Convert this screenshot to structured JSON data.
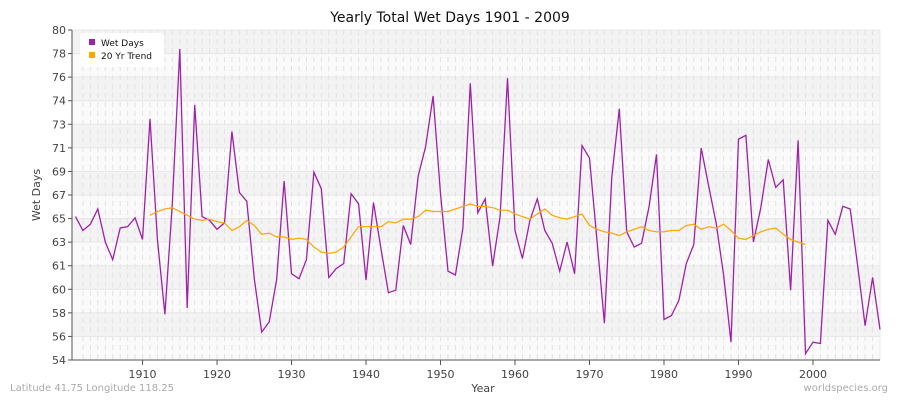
{
  "chart_data": {
    "type": "line",
    "title": "Yearly Total Wet Days 1901 - 2009",
    "xlabel": "Year",
    "ylabel": "Wet Days",
    "xlim": [
      1901,
      2009
    ],
    "ylim": [
      54,
      80
    ],
    "x_ticks": [
      1910,
      1920,
      1930,
      1940,
      1950,
      1960,
      1970,
      1980,
      1990,
      2000
    ],
    "y_tick_labels": [
      "54",
      "56",
      "58",
      "60",
      "61",
      "63",
      "65",
      "67",
      "69",
      "71",
      "73",
      "74",
      "76",
      "78",
      "80"
    ],
    "grid": true,
    "legend_placement": "top-left",
    "series": [
      {
        "name": "Wet Days",
        "color": "#a020a8",
        "start_year": 1901,
        "values": [
          65.3,
          64.2,
          64.7,
          65.9,
          63.3,
          61.9,
          64.4,
          64.5,
          65.2,
          63.5,
          73.0,
          63.5,
          57.6,
          66.3,
          78.5,
          58.1,
          74.1,
          65.3,
          65.0,
          64.3,
          64.8,
          72.0,
          67.2,
          66.5,
          60.4,
          56.2,
          57.0,
          60.3,
          68.1,
          60.8,
          60.4,
          61.9,
          68.8,
          67.5,
          60.5,
          61.2,
          61.6,
          67.1,
          66.3,
          60.3,
          66.4,
          62.8,
          59.3,
          59.5,
          64.6,
          63.1,
          68.5,
          70.8,
          74.8,
          67.1,
          61.0,
          60.7,
          64.4,
          75.8,
          65.6,
          66.7,
          61.4,
          65.3,
          76.2,
          64.2,
          62.0,
          65.0,
          66.7,
          64.2,
          63.2,
          61.0,
          63.3,
          60.8,
          70.9,
          69.9,
          63.5,
          56.9,
          68.4,
          73.8,
          64.1,
          62.9,
          63.2,
          66.1,
          70.2,
          57.2,
          57.5,
          58.7,
          61.6,
          63.1,
          70.7,
          67.7,
          64.8,
          60.7,
          55.4,
          71.4,
          71.7,
          63.3,
          66.0,
          69.8,
          67.6,
          68.2,
          59.5,
          71.3,
          54.5,
          55.4,
          55.3,
          65.0,
          63.9,
          66.1,
          65.9,
          61.4,
          56.7,
          60.5,
          56.4
        ]
      },
      {
        "name": "20 Yr Trend",
        "color": "#ffa500",
        "start_year": 1911,
        "values": [
          65.4,
          65.7,
          65.9,
          66.0,
          65.7,
          65.4,
          65.1,
          65.0,
          65.1,
          64.9,
          64.8,
          64.2,
          64.5,
          65.0,
          64.6,
          63.9,
          64.0,
          63.7,
          63.7,
          63.5,
          63.6,
          63.5,
          62.9,
          62.5,
          62.4,
          62.5,
          62.9,
          63.7,
          64.5,
          64.5,
          64.5,
          64.5,
          64.9,
          64.8,
          65.1,
          65.1,
          65.3,
          65.8,
          65.7,
          65.7,
          65.7,
          65.9,
          66.1,
          66.3,
          66.1,
          66.1,
          66.0,
          65.8,
          65.8,
          65.5,
          65.3,
          65.1,
          65.5,
          65.9,
          65.4,
          65.2,
          65.1,
          65.3,
          65.5,
          64.6,
          64.3,
          64.1,
          64.0,
          63.8,
          64.1,
          64.3,
          64.5,
          64.2,
          64.1,
          64.1,
          64.2,
          64.2,
          64.6,
          64.7,
          64.3,
          64.5,
          64.4,
          64.7,
          64.2,
          63.6,
          63.5,
          63.8,
          64.1,
          64.3,
          64.4,
          63.9,
          63.5,
          63.3,
          63.1
        ]
      }
    ]
  },
  "footer": {
    "left": "Latitude 41.75 Longitude 118.25",
    "right": "worldspecies.org"
  }
}
